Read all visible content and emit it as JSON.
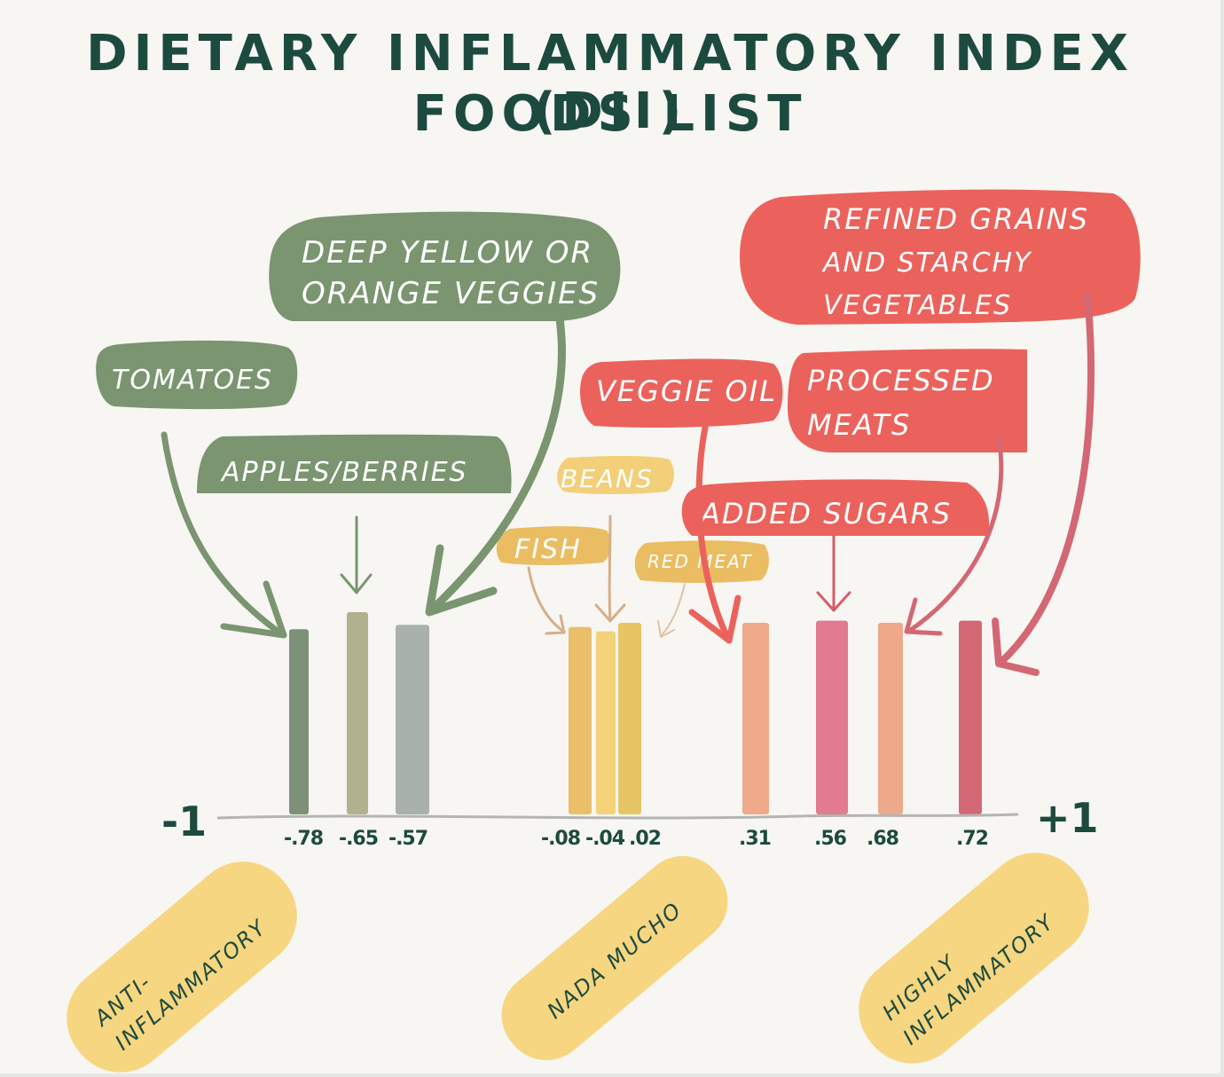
{
  "title_line1": "DIETARY INFLAMMATORY INDEX (DII)",
  "title_line2": "FOODS LIST",
  "axis": {
    "min_label": "-1",
    "max_label": "+1"
  },
  "chart_data": {
    "type": "bar",
    "title": "DIETARY INFLAMMATORY INDEX (DII) FOODS LIST",
    "x_range": [
      -1,
      1
    ],
    "categories": [
      "Tomatoes",
      "Apples/Berries",
      "Deep yellow or orange veggies",
      "Fish",
      "Beans",
      "Red meat",
      "Veggie oil",
      "Added Sugars",
      "Processed meats",
      "Refined grains and starchy vegetables"
    ],
    "values": [
      -0.78,
      -0.65,
      -0.57,
      -0.08,
      -0.04,
      0.02,
      0.31,
      0.56,
      0.68,
      0.72
    ],
    "value_labels": [
      "-.78",
      "-.65",
      "-.57",
      "-.08",
      "-.04",
      ".02",
      ".31",
      ".56",
      ".68",
      ".72"
    ],
    "bar_colors": [
      "#7d9179",
      "#b2b18e",
      "#a9b1ad",
      "#ebbe6a",
      "#f4d27a",
      "#e7c565",
      "#eeaa8a",
      "#e27a91",
      "#eda98a",
      "#d36774"
    ],
    "bar_heights": [
      0.87,
      0.95,
      0.89,
      0.88,
      0.86,
      0.9,
      0.9,
      0.91,
      0.9,
      0.91
    ]
  },
  "callouts": {
    "tomatoes": "TOMATOES",
    "apples": "APPLES/BERRIES",
    "deep_yellow_1": "DEEP YELLOW OR",
    "deep_yellow_2": "ORANGE VEGGIES",
    "beans": "BEANS",
    "fish": "FISH",
    "red_meat": "RED MEAT",
    "veggie_oil": "VEGGIE OIL",
    "processed_1": "PROCESSED",
    "processed_2": "MEATS",
    "added_sugars": "ADDED SUGARS",
    "refined_1": "REFINED GRAINS",
    "refined_2": "AND STARCHY",
    "refined_3": "VEGETABLES"
  },
  "categories_bands": {
    "anti_1": "ANTI-",
    "anti_2": "INFLAMMATORY",
    "nada": "NADA MUCHO",
    "high_1": "HIGHLY",
    "high_2": "INFLAMMATORY"
  },
  "colors": {
    "green": "#7a9570",
    "gold": "#eabd62",
    "red": "#eb625c",
    "title": "#1d4a3f",
    "band": "#f6d680"
  }
}
